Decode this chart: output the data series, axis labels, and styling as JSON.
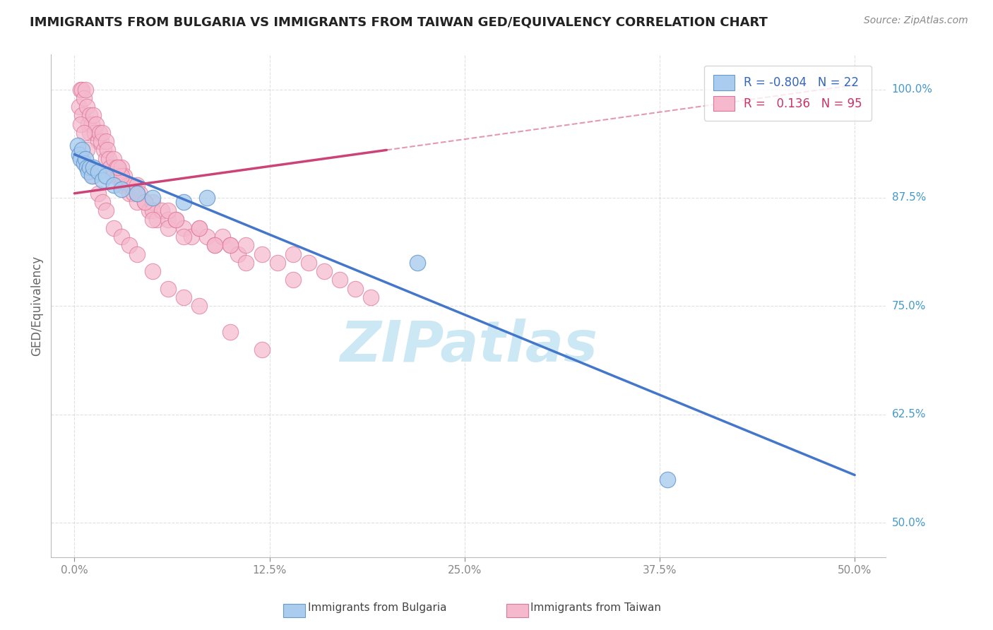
{
  "title": "IMMIGRANTS FROM BULGARIA VS IMMIGRANTS FROM TAIWAN GED/EQUIVALENCY CORRELATION CHART",
  "source": "Source: ZipAtlas.com",
  "xlabel_tick_vals": [
    0.0,
    12.5,
    25.0,
    37.5,
    50.0
  ],
  "ylabel_tick_vals": [
    50.0,
    62.5,
    75.0,
    87.5,
    100.0
  ],
  "ylabel_label": "GED/Equivalency",
  "xlim": [
    -1.5,
    52.0
  ],
  "ylim": [
    46.0,
    104.0
  ],
  "bg_color": "#ffffff",
  "watermark": "ZIPatlas",
  "watermark_color": "#cde8f5",
  "grid_color": "#cccccc",
  "bulgaria_color": "#aaccee",
  "taiwan_color": "#f5b8cc",
  "bulgaria_edge": "#6699cc",
  "taiwan_edge": "#dd7799",
  "blue_line_color": "#4477cc",
  "pink_line_color": "#cc4477",
  "legend_r_vals": [
    "-0.804",
    " 0.136"
  ],
  "legend_n_vals": [
    "22",
    "95"
  ],
  "legend_r_colors": [
    "#3366bb",
    "#cc3366"
  ],
  "legend_n_colors": [
    "#333333",
    "#333333"
  ],
  "title_color": "#222222",
  "source_color": "#888888",
  "tick_color": "#888888",
  "ytick_color": "#4499cc",
  "bulgaria_x": [
    0.2,
    0.3,
    0.4,
    0.5,
    0.6,
    0.7,
    0.8,
    0.9,
    1.0,
    1.1,
    1.2,
    1.5,
    1.8,
    2.0,
    2.5,
    3.0,
    4.0,
    5.0,
    7.0,
    8.5,
    22.0,
    38.0
  ],
  "bulgaria_y": [
    93.5,
    92.5,
    92.0,
    93.0,
    91.5,
    92.0,
    91.0,
    90.5,
    91.0,
    90.0,
    91.0,
    90.5,
    89.5,
    90.0,
    89.0,
    88.5,
    88.0,
    87.5,
    87.0,
    87.5,
    80.0,
    55.0
  ],
  "taiwan_x": [
    0.3,
    0.4,
    0.5,
    0.5,
    0.6,
    0.7,
    0.8,
    0.9,
    1.0,
    1.0,
    1.1,
    1.2,
    1.3,
    1.4,
    1.5,
    1.6,
    1.7,
    1.8,
    1.9,
    2.0,
    2.0,
    2.1,
    2.2,
    2.3,
    2.5,
    2.5,
    2.7,
    2.8,
    3.0,
    3.0,
    3.2,
    3.4,
    3.5,
    3.6,
    3.8,
    4.0,
    4.0,
    4.2,
    4.5,
    4.8,
    5.0,
    5.0,
    5.3,
    5.6,
    6.0,
    6.0,
    6.5,
    7.0,
    7.5,
    8.0,
    8.5,
    9.0,
    9.5,
    10.0,
    10.5,
    11.0,
    12.0,
    13.0,
    14.0,
    15.0,
    16.0,
    17.0,
    18.0,
    19.0,
    0.4,
    0.6,
    0.8,
    1.0,
    1.2,
    1.5,
    1.8,
    2.0,
    2.5,
    3.0,
    3.5,
    4.0,
    5.0,
    6.0,
    7.0,
    8.0,
    10.0,
    12.0,
    4.0,
    6.0,
    8.0,
    10.0,
    14.0,
    5.0,
    7.0,
    3.0,
    4.5,
    6.5,
    9.0,
    11.0,
    2.8
  ],
  "taiwan_y": [
    98.0,
    100.0,
    97.0,
    100.0,
    99.0,
    100.0,
    98.0,
    96.0,
    97.0,
    95.0,
    96.0,
    97.0,
    95.0,
    96.0,
    94.0,
    95.0,
    94.0,
    95.0,
    93.0,
    94.0,
    92.0,
    93.0,
    92.0,
    91.0,
    92.0,
    90.0,
    91.0,
    90.0,
    91.0,
    89.0,
    90.0,
    89.0,
    88.0,
    89.0,
    88.0,
    89.0,
    87.0,
    88.0,
    87.0,
    86.0,
    87.0,
    86.0,
    85.0,
    86.0,
    85.0,
    84.0,
    85.0,
    84.0,
    83.0,
    84.0,
    83.0,
    82.0,
    83.0,
    82.0,
    81.0,
    82.0,
    81.0,
    80.0,
    81.0,
    80.0,
    79.0,
    78.0,
    77.0,
    76.0,
    96.0,
    95.0,
    93.0,
    91.0,
    90.0,
    88.0,
    87.0,
    86.0,
    84.0,
    83.0,
    82.0,
    81.0,
    79.0,
    77.0,
    76.0,
    75.0,
    72.0,
    70.0,
    88.0,
    86.0,
    84.0,
    82.0,
    78.0,
    85.0,
    83.0,
    90.0,
    87.0,
    85.0,
    82.0,
    80.0,
    91.0
  ],
  "blue_line_x0": 0.0,
  "blue_line_y0": 92.5,
  "blue_line_x1": 50.0,
  "blue_line_y1": 55.5,
  "pink_line_x0": 0.0,
  "pink_line_y0": 88.0,
  "pink_line_x1": 50.0,
  "pink_line_y1": 100.5,
  "pink_solid_end": 20.0,
  "pink_dash_start": 20.0
}
